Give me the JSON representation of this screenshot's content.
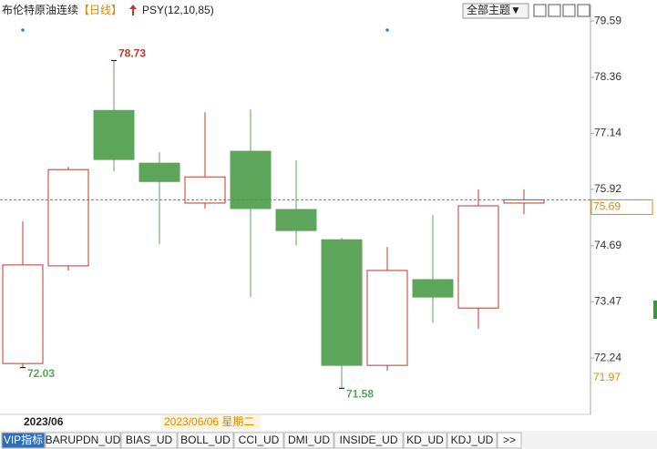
{
  "header": {
    "title": "布伦特原油连续",
    "period": "【日线】",
    "indicator": "PSY(12,10,85)",
    "theme_button": "全部主题▼"
  },
  "chart_data": {
    "type": "candlestick",
    "categories": [
      null,
      null,
      null,
      null,
      null,
      null,
      null,
      null,
      null,
      null,
      null,
      null
    ],
    "open": [
      72.12,
      74.25,
      77.64,
      76.49,
      75.62,
      76.75,
      75.48,
      74.82,
      72.08,
      73.95,
      73.33,
      75.62
    ],
    "high": [
      75.22,
      76.41,
      78.73,
      76.73,
      77.6,
      77.66,
      76.55,
      74.86,
      74.66,
      75.36,
      75.92,
      75.92
    ],
    "low": [
      72.03,
      74.15,
      76.31,
      74.72,
      75.5,
      73.57,
      74.7,
      71.58,
      71.96,
      73.01,
      72.88,
      75.38
    ],
    "close": [
      74.27,
      76.35,
      76.57,
      76.09,
      76.19,
      75.5,
      75.02,
      72.08,
      74.15,
      73.57,
      75.56,
      75.69
    ],
    "up_color": "#c0392b",
    "down_color": "#5da55a",
    "ylim": [
      71.01,
      79.95
    ],
    "yticks": [
      79.59,
      78.36,
      77.14,
      75.92,
      74.69,
      73.47,
      72.24
    ],
    "axis_low_price": 71.97
  },
  "footer": {
    "date": "2023/06",
    "cursor_date": "2023/06/06 星期二",
    "tabs": [
      "VIP指标",
      "BARUPDN_UD",
      "BIAS_UD",
      "BOLL_UD",
      "CCI_UD",
      "DMI_UD",
      "INSIDE_UD",
      "KD_UD",
      "KDJ_UD",
      ">>"
    ]
  }
}
